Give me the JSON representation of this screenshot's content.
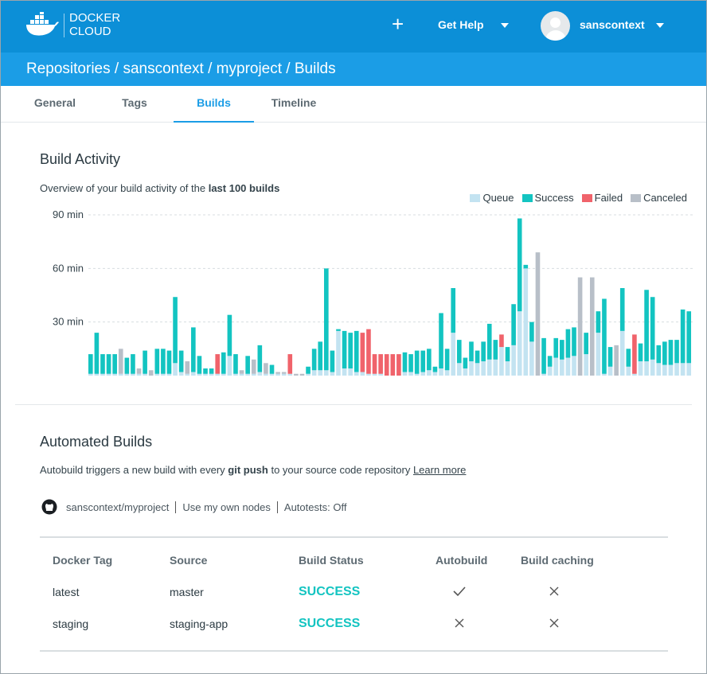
{
  "header": {
    "brand": [
      "DOCKER",
      "CLOUD"
    ],
    "help": "Get Help",
    "user": "sanscontext"
  },
  "breadcrumb": "Repositories / sanscontext / myproject / Builds",
  "tabs": [
    "General",
    "Tags",
    "Builds",
    "Timeline"
  ],
  "activity": {
    "title": "Build Activity",
    "intro": "Overview of your build activity of the ",
    "intro_bold": "last 100 builds"
  },
  "chart_data": {
    "type": "stacked-bar",
    "ylim": [
      0,
      90
    ],
    "yticks": [
      {
        "value": 30,
        "label": "30 min"
      },
      {
        "value": 60,
        "label": "60 min"
      },
      {
        "value": 90,
        "label": "90 min"
      }
    ],
    "grid": true,
    "legend": "top-right",
    "series": [
      {
        "name": "Queue",
        "color": "#c3e3f1",
        "values": [
          1,
          1,
          1,
          1,
          1,
          1,
          1,
          1,
          1,
          1,
          0,
          1,
          1,
          1,
          7,
          2,
          1,
          2,
          1,
          1,
          1,
          1,
          1,
          11,
          1,
          1,
          1,
          1,
          2,
          1,
          1,
          1,
          1,
          1,
          0,
          0,
          1,
          3,
          3,
          3,
          2,
          25,
          4,
          4,
          2,
          2,
          1,
          1,
          1,
          0,
          0,
          0,
          2,
          2,
          1,
          2,
          3,
          2,
          4,
          3,
          24,
          7,
          4,
          8,
          7,
          8,
          9,
          9,
          16,
          8,
          17,
          36,
          60,
          19,
          0,
          1,
          5,
          10,
          9,
          10,
          11,
          0,
          12,
          0,
          24,
          1,
          5,
          0,
          25,
          5,
          1,
          8,
          8,
          9,
          7,
          6,
          6,
          7,
          7,
          7
        ]
      },
      {
        "name": "Success",
        "color": "#13c4c1",
        "values": [
          11,
          23,
          11,
          11,
          11,
          null,
          9,
          11,
          null,
          13,
          null,
          14,
          14,
          13,
          37,
          12,
          null,
          25,
          10,
          3,
          3,
          null,
          12,
          23,
          11,
          null,
          10,
          null,
          15,
          null,
          5,
          null,
          null,
          null,
          null,
          null,
          4,
          12,
          16,
          57,
          12,
          1,
          21,
          20,
          23,
          null,
          null,
          null,
          null,
          null,
          null,
          null,
          11,
          10,
          13,
          12,
          12,
          3,
          31,
          12,
          25,
          13,
          6,
          11,
          7,
          11,
          20,
          11,
          null,
          8,
          23,
          52,
          2,
          11,
          null,
          20,
          6,
          11,
          11,
          16,
          16,
          null,
          12,
          null,
          12,
          42,
          11,
          null,
          24,
          10,
          null,
          10,
          40,
          35,
          10,
          13,
          14,
          13,
          30,
          29
        ]
      },
      {
        "name": "Failed",
        "color": "#f0636b",
        "values": [
          null,
          null,
          null,
          null,
          null,
          null,
          null,
          null,
          null,
          null,
          null,
          null,
          null,
          null,
          null,
          null,
          null,
          null,
          null,
          null,
          null,
          11,
          null,
          null,
          null,
          null,
          null,
          null,
          null,
          null,
          null,
          null,
          null,
          11,
          null,
          null,
          null,
          null,
          null,
          null,
          null,
          null,
          null,
          null,
          null,
          22,
          25,
          11,
          11,
          12,
          12,
          12,
          null,
          null,
          null,
          null,
          null,
          null,
          null,
          null,
          null,
          null,
          null,
          null,
          null,
          null,
          null,
          null,
          7,
          null,
          null,
          null,
          null,
          null,
          null,
          null,
          null,
          null,
          null,
          null,
          null,
          null,
          null,
          null,
          null,
          null,
          null,
          null,
          null,
          null,
          22,
          null,
          null,
          null,
          null,
          null,
          null,
          null,
          null,
          null
        ]
      },
      {
        "name": "Canceled",
        "color": "#b8bfc8",
        "values": [
          null,
          null,
          null,
          null,
          null,
          14,
          null,
          null,
          3,
          null,
          3,
          null,
          null,
          null,
          null,
          null,
          7,
          null,
          null,
          null,
          null,
          null,
          null,
          null,
          null,
          2,
          null,
          8,
          null,
          6,
          null,
          1,
          1,
          null,
          1,
          1,
          null,
          null,
          null,
          null,
          null,
          null,
          null,
          null,
          null,
          null,
          null,
          null,
          null,
          null,
          null,
          null,
          null,
          null,
          null,
          null,
          null,
          null,
          null,
          null,
          null,
          null,
          null,
          null,
          null,
          null,
          null,
          null,
          null,
          null,
          null,
          null,
          null,
          null,
          69,
          null,
          null,
          null,
          null,
          null,
          null,
          55,
          null,
          55,
          null,
          null,
          null,
          17,
          null,
          null,
          null,
          null,
          null,
          null,
          null,
          null,
          null,
          null,
          null,
          null
        ]
      }
    ]
  },
  "automated": {
    "title": "Automated Builds",
    "text": [
      "Autobuild triggers a new build with every ",
      "git push",
      " to your source code repository "
    ],
    "link": "Learn more",
    "repo": "sanscontext/myproject",
    "nodes": "Use my own nodes",
    "autotests": "Autotests: Off"
  },
  "table": {
    "headers": [
      "Docker Tag",
      "Source",
      "Build Status",
      "Autobuild",
      "Build caching"
    ],
    "rows": [
      [
        "latest",
        "master",
        "SUCCESS"
      ],
      [
        "staging",
        "staging-app",
        "SUCCESS"
      ]
    ]
  }
}
